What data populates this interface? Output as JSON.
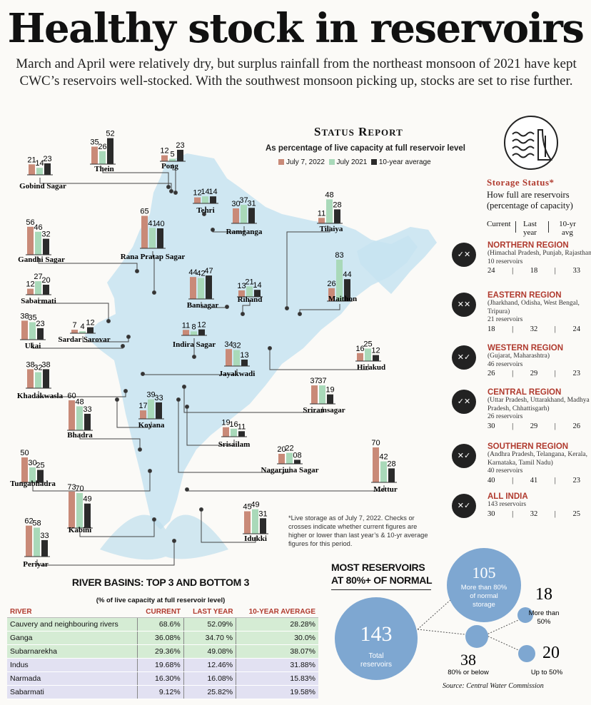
{
  "headline": "Healthy stock in reservoirs",
  "intro": "March and April were relatively dry, but surplus rainfall from the northeast monsoon of 2021 have kept CWC’s reservoirs well-stocked. With the southwest monsoon picking up, stocks are set to rise further.",
  "status_report": {
    "title": "Status Report",
    "subtitle": "As percentage of live capacity at full reservoir level",
    "legend": [
      "July 7, 2022",
      "July 2021",
      "10-year average"
    ]
  },
  "colors": {
    "current": "#c98a78",
    "last_year": "#a9d9b9",
    "avg": "#2b2b2b",
    "accent": "#b03a2e",
    "map": "#c7e3f1",
    "bubble": "#7ea7d1"
  },
  "icons": [
    "reservoir-dam-icon",
    "check-cross-badge-icon"
  ],
  "chart_data": [
    {
      "type": "bar",
      "title": "Status Report",
      "subtitle": "As percentage of live capacity at full reservoir level",
      "series_names": [
        "July 7, 2022",
        "July 2021",
        "10-year average"
      ],
      "reservoirs": [
        {
          "name": "Gobind Sagar",
          "values": [
            21,
            14,
            23
          ]
        },
        {
          "name": "Thein",
          "values": [
            35,
            26,
            52
          ]
        },
        {
          "name": "Pong",
          "values": [
            12,
            5,
            23
          ]
        },
        {
          "name": "Tehri",
          "values": [
            12,
            14,
            14
          ]
        },
        {
          "name": "Ramganga",
          "values": [
            30,
            37,
            31
          ]
        },
        {
          "name": "Tilaiya",
          "values": [
            11,
            48,
            28
          ]
        },
        {
          "name": "Gandhi Sagar",
          "values": [
            56,
            46,
            32
          ]
        },
        {
          "name": "Rana Pratap Sagar",
          "values": [
            65,
            41,
            40
          ]
        },
        {
          "name": "Maithon",
          "values": [
            26,
            83,
            44
          ]
        },
        {
          "name": "Sabarmati",
          "values": [
            12,
            27,
            20
          ]
        },
        {
          "name": "Bansagar",
          "values": [
            44,
            42,
            47
          ]
        },
        {
          "name": "Rihand",
          "values": [
            13,
            21,
            14
          ]
        },
        {
          "name": "Ukai",
          "values": [
            38,
            35,
            23
          ]
        },
        {
          "name": "Sardar Sarovar",
          "values": [
            7,
            4,
            12
          ]
        },
        {
          "name": "Indira Sagar",
          "values": [
            11,
            8,
            12
          ]
        },
        {
          "name": "Jayakwadi",
          "values": [
            34,
            32,
            13
          ]
        },
        {
          "name": "Hirakud",
          "values": [
            16,
            25,
            12
          ]
        },
        {
          "name": "Khadakwasla",
          "values": [
            38,
            32,
            38
          ]
        },
        {
          "name": "Koyana",
          "values": [
            17,
            39,
            33
          ]
        },
        {
          "name": "Sriramsagar",
          "values": [
            37,
            37,
            19
          ]
        },
        {
          "name": "Bhadra",
          "values": [
            60,
            48,
            33
          ]
        },
        {
          "name": "Srisailam",
          "values": [
            19,
            16,
            11
          ]
        },
        {
          "name": "Nagarjuna Sagar",
          "values": [
            20,
            22,
            8
          ]
        },
        {
          "name": "Tungabhadra",
          "values": [
            50,
            30,
            25
          ]
        },
        {
          "name": "Mettur",
          "values": [
            70,
            42,
            28
          ]
        },
        {
          "name": "Kabini",
          "values": [
            73,
            70,
            49
          ]
        },
        {
          "name": "Idukki",
          "values": [
            45,
            49,
            31
          ]
        },
        {
          "name": "Periyar",
          "values": [
            62,
            58,
            33
          ]
        }
      ],
      "labels_override": {
        "Nagarjuna Sagar": [
          "20",
          "22",
          "08"
        ]
      }
    },
    {
      "type": "table",
      "title": "River basins: top 3 and bottom 3",
      "subtitle": "(% of live capacity at full reservoir level)",
      "columns": [
        "RIVER",
        "CURRENT",
        "LAST YEAR",
        "10-YEAR AVERAGE"
      ],
      "rows": [
        [
          "Cauvery and neighbouring rivers",
          "68.6%",
          "52.09%",
          "28.28%"
        ],
        [
          "Ganga",
          "36.08%",
          "34.70 %",
          "30.0%"
        ],
        [
          "Subarnarekha",
          "29.36%",
          "49.08%",
          "38.07%"
        ],
        [
          "Indus",
          "19.68%",
          "12.46%",
          "31.88%"
        ],
        [
          "Narmada",
          "16.30%",
          "16.08%",
          "15.83%"
        ],
        [
          "Sabarmati",
          "9.12%",
          "25.82%",
          "19.58%"
        ]
      ]
    }
  ],
  "storage_status": {
    "title": "Storage Status*",
    "subtitle": "How full are reservoirs (percentage of capacity)",
    "col_current": "Current",
    "col_last": "Last year",
    "col_avg": "10-yr avg",
    "regions": [
      {
        "name": "NORTHERN REGION",
        "states": "(Himachal Pradesh, Punjab, Rajasthan)",
        "count": "10 reservoirs",
        "values": [
          "24",
          "18",
          "33"
        ]
      },
      {
        "name": "EASTERN REGION",
        "states": "(Jharkhand, Odisha, West Bengal, Tripura)",
        "count": "21 reservoirs",
        "values": [
          "18",
          "32",
          "24"
        ]
      },
      {
        "name": "WESTERN REGION",
        "states": "(Gujarat, Maharashtra)",
        "count": "46 reservoirs",
        "values": [
          "26",
          "29",
          "23"
        ]
      },
      {
        "name": "CENTRAL REGION",
        "states": "(Uttar Pradesh, Uttarakhand, Madhya Pradesh, Chhattisgarh)",
        "count": "26 reservoirs",
        "values": [
          "30",
          "29",
          "26"
        ]
      },
      {
        "name": "SOUTHERN REGION",
        "states": "(Andhra Pradesh, Telangana, Kerala, Karnataka, Tamil Nadu)",
        "count": "40 reservoirs",
        "values": [
          "40",
          "41",
          "23"
        ]
      },
      {
        "name": "ALL INDIA",
        "states": "",
        "count": "143 reservoirs",
        "values": [
          "30",
          "32",
          "25"
        ]
      }
    ]
  },
  "note": "*Live storage as of July 7, 2022. Checks or crosses indicate whether current figures are higher or lower than last year’s & 10-yr average figures for this period.",
  "most_reservoirs": {
    "title_line1": "MOST RESERVOIRS",
    "title_line2": "AT 80%+ OF NORMAL",
    "total_value": "143",
    "total_label": "Total reservoirs",
    "above_value": "105",
    "above_label": "More than 80% of normal storage",
    "below_value": "38",
    "below_label": "80% or below",
    "more50_value": "18",
    "more50_label": "More than 50%",
    "upto50_value": "20",
    "upto50_label": "Up to 50%"
  },
  "source": "Source: Central Water Commission"
}
